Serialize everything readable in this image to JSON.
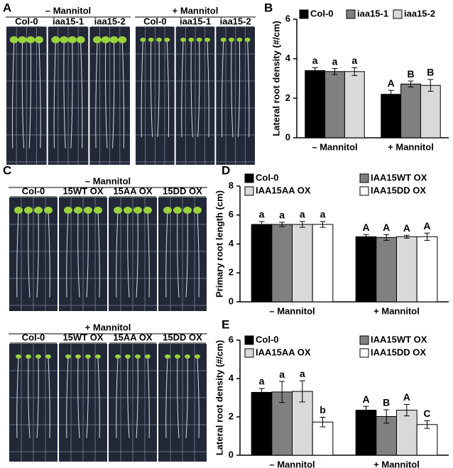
{
  "photo_panels": [
    {
      "label": "A",
      "groups": [
        {
          "title": "– Mannitol",
          "lanes": [
            "Col-0",
            "iaa15-1",
            "iaa15-2"
          ]
        },
        {
          "title": "+ Mannitol",
          "lanes": [
            "Col-0",
            "iaa15-1",
            "iaa15-2"
          ]
        }
      ]
    },
    {
      "label": "C",
      "groups": [
        {
          "title": "– Mannitol",
          "lanes": [
            "Col-0",
            "15WT OX",
            "15AA OX",
            "15DD OX"
          ]
        },
        {
          "title": "+ Mannitol",
          "lanes": [
            "Col-0",
            "15WT OX",
            "15AA OX",
            "15DD OX"
          ]
        }
      ]
    }
  ],
  "chart_data": [
    {
      "type": "bar",
      "panel": "B",
      "y_label": "Lateral root density (#/cm)",
      "categories": [
        "– Mannitol",
        "+ Mannitol"
      ],
      "ylim": [
        0,
        6
      ],
      "yticks": [
        0,
        2,
        4,
        6
      ],
      "series": [
        {
          "name": "Col-0",
          "color": "#000000",
          "values": [
            3.4,
            2.2
          ],
          "errors": [
            0.15,
            0.2
          ],
          "letters": [
            "a",
            "A"
          ]
        },
        {
          "name": "iaa15-1",
          "color": "#808080",
          "values": [
            3.35,
            2.72
          ],
          "errors": [
            0.15,
            0.15
          ],
          "letters": [
            "a",
            "B"
          ]
        },
        {
          "name": "iaa15-2",
          "color": "#d9d9d9",
          "values": [
            3.35,
            2.65
          ],
          "errors": [
            0.2,
            0.3
          ],
          "letters": [
            "a",
            "B"
          ]
        }
      ]
    },
    {
      "type": "bar",
      "panel": "D",
      "y_label": "Primary root length (cm)",
      "categories": [
        "– Mannitol",
        "+ Mannitol"
      ],
      "ylim": [
        0,
        8
      ],
      "yticks": [
        0,
        2,
        4,
        6,
        8
      ],
      "series": [
        {
          "name": "Col-0",
          "color": "#000000",
          "values": [
            5.35,
            4.5
          ],
          "errors": [
            0.2,
            0.15
          ],
          "letters": [
            "a",
            "A"
          ]
        },
        {
          "name": "IAA15WT OX",
          "color": "#808080",
          "values": [
            5.35,
            4.45
          ],
          "errors": [
            0.15,
            0.2
          ],
          "letters": [
            "a",
            "A"
          ]
        },
        {
          "name": "IAA15AA OX",
          "color": "#d9d9d9",
          "values": [
            5.35,
            4.5
          ],
          "errors": [
            0.2,
            0.1
          ],
          "letters": [
            "a",
            "A"
          ]
        },
        {
          "name": "IAA15DD OX",
          "color": "#ffffff",
          "values": [
            5.35,
            4.5
          ],
          "errors": [
            0.2,
            0.25
          ],
          "letters": [
            "a",
            "A"
          ]
        }
      ]
    },
    {
      "type": "bar",
      "panel": "E",
      "y_label": "Lateral root density (#/cm)",
      "categories": [
        "– Mannitol",
        "+ Mannitol"
      ],
      "ylim": [
        0,
        6
      ],
      "yticks": [
        0,
        2,
        4,
        6
      ],
      "series": [
        {
          "name": "Col-0",
          "color": "#000000",
          "values": [
            3.28,
            2.35
          ],
          "errors": [
            0.2,
            0.2
          ],
          "letters": [
            "a",
            "A"
          ]
        },
        {
          "name": "IAA15WT OX",
          "color": "#808080",
          "values": [
            3.3,
            2.02
          ],
          "errors": [
            0.55,
            0.35
          ],
          "letters": [
            "a",
            "B"
          ]
        },
        {
          "name": "IAA15AA OX",
          "color": "#d9d9d9",
          "values": [
            3.33,
            2.35
          ],
          "errors": [
            0.55,
            0.3
          ],
          "letters": [
            "a",
            "A"
          ]
        },
        {
          "name": "IAA15DD OX",
          "color": "#ffffff",
          "values": [
            1.73,
            1.6
          ],
          "errors": [
            0.25,
            0.2
          ],
          "letters": [
            "b",
            "C"
          ]
        }
      ]
    }
  ]
}
